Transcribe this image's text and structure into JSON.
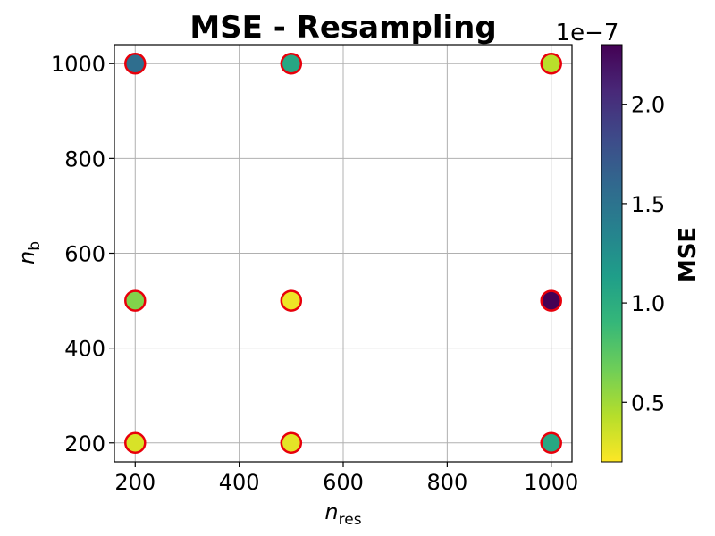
{
  "chart_data": {
    "type": "scatter",
    "title": "MSE - Resampling",
    "xlabel": {
      "main": "n",
      "sub": "res"
    },
    "ylabel": {
      "main": "n",
      "sub": "b"
    },
    "xlim": [
      160,
      1040
    ],
    "ylim": [
      160,
      1040
    ],
    "xticks": [
      200,
      400,
      600,
      800,
      1000
    ],
    "yticks": [
      200,
      400,
      600,
      800,
      1000
    ],
    "grid": true,
    "marker_edge_color": "#e8000b",
    "points": [
      {
        "x": 200,
        "y": 1000,
        "mse": 1.55e-07
      },
      {
        "x": 500,
        "y": 1000,
        "mse": 1.05e-07
      },
      {
        "x": 1000,
        "y": 1000,
        "mse": 4.2e-08
      },
      {
        "x": 200,
        "y": 500,
        "mse": 6e-08
      },
      {
        "x": 500,
        "y": 500,
        "mse": 2.5e-08
      },
      {
        "x": 1000,
        "y": 500,
        "mse": 2.3e-07
      },
      {
        "x": 200,
        "y": 200,
        "mse": 3.2e-08
      },
      {
        "x": 500,
        "y": 200,
        "mse": 2.8e-08
      },
      {
        "x": 1000,
        "y": 200,
        "mse": 1.05e-07
      }
    ],
    "colorbar": {
      "label": "MSE",
      "offset_text": "1e−7",
      "colormap": "viridis",
      "range": [
        0.2,
        2.3
      ],
      "ticks": [
        0.5,
        1.0,
        1.5,
        2.0
      ],
      "tick_labels": [
        "0.5",
        "1.0",
        "1.5",
        "2.0"
      ],
      "stops": [
        "#440154",
        "#482878",
        "#3e4a89",
        "#31688e",
        "#26828e",
        "#1f9e89",
        "#35b779",
        "#6ece58",
        "#b5de2b",
        "#fde725"
      ]
    }
  }
}
